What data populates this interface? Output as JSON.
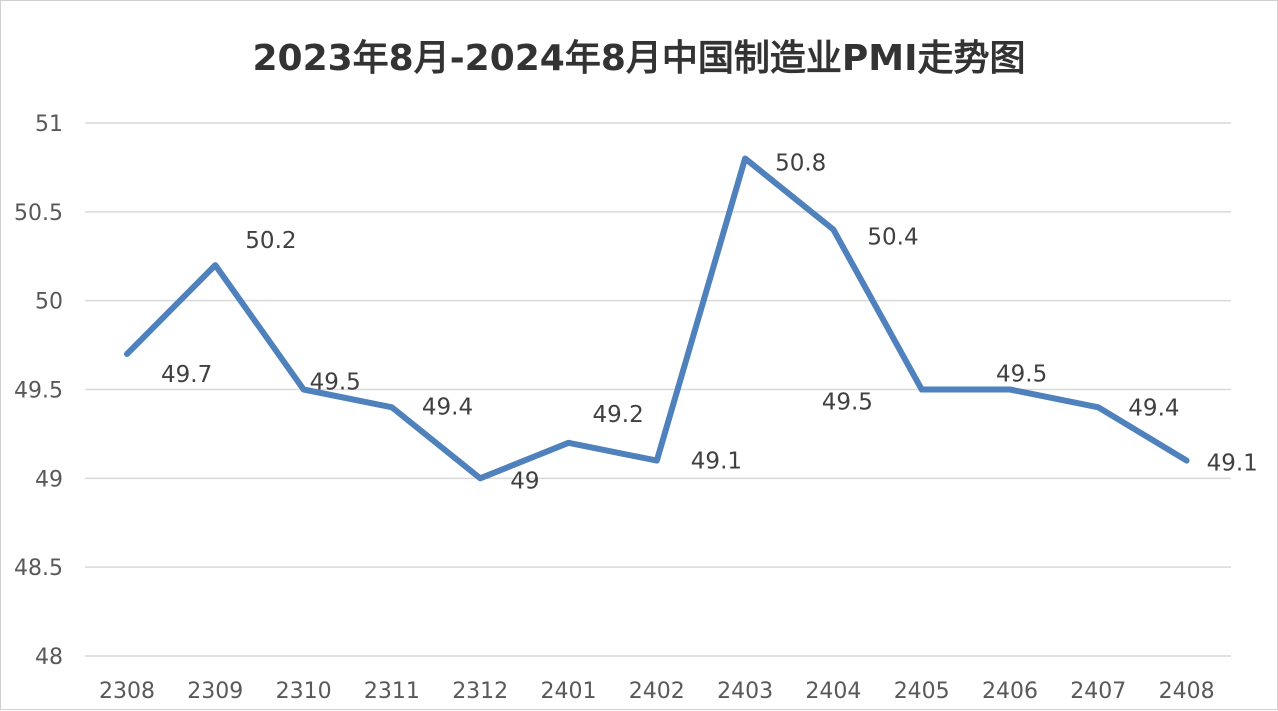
{
  "chart_data": {
    "type": "line",
    "title": "2023年8月-2024年8月中国制造业PMI走势图",
    "categories": [
      "2308",
      "2309",
      "2310",
      "2311",
      "2312",
      "2401",
      "2402",
      "2403",
      "2404",
      "2405",
      "2406",
      "2407",
      "2408"
    ],
    "series": [
      {
        "values": [
          49.7,
          50.2,
          49.5,
          49.4,
          49,
          49.2,
          49.1,
          50.8,
          50.4,
          49.5,
          49.5,
          49.4,
          49.1
        ]
      }
    ],
    "data_labels": [
      "49.7",
      "50.2",
      "49.5",
      "49.4",
      "49",
      "49.2",
      "49.1",
      "50.8",
      "50.4",
      "49.5",
      "49.5",
      "49.4",
      "49.1"
    ],
    "y_ticks": [
      "48",
      "48.5",
      "49",
      "49.5",
      "50",
      "50.5",
      "51"
    ],
    "ylim": [
      48,
      51
    ],
    "grid": true,
    "legend": "none",
    "colors": {
      "line": "#4f81bd",
      "grid": "#d9d9d9",
      "text": "#595959"
    }
  }
}
